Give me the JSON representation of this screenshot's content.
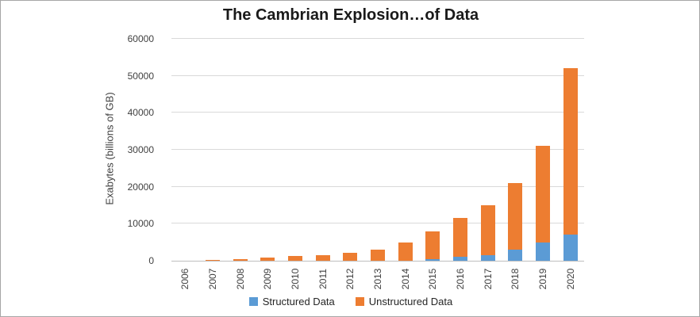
{
  "window": {
    "background_color": "#ffffff",
    "border_color": "#a6a6a6"
  },
  "chart_data": {
    "type": "bar",
    "stacked": true,
    "title": "The Cambrian Explosion…of Data",
    "xlabel": "",
    "ylabel": "Exabytes (billions of GB)",
    "categories": [
      "2006",
      "2007",
      "2008",
      "2009",
      "2010",
      "2011",
      "2012",
      "2013",
      "2014",
      "2015",
      "2016",
      "2017",
      "2018",
      "2019",
      "2020"
    ],
    "series": [
      {
        "name": "Structured Data",
        "color": "#5b9bd5",
        "values": [
          0,
          0,
          0,
          0,
          0,
          0,
          0,
          0,
          100,
          400,
          1000,
          1500,
          3000,
          5000,
          7000
        ]
      },
      {
        "name": "Unstructured Data",
        "color": "#ed7d31",
        "values": [
          100,
          200,
          400,
          800,
          1200,
          1500,
          2200,
          3100,
          4900,
          7600,
          10500,
          13500,
          18000,
          26000,
          45000
        ]
      }
    ],
    "totals": [
      100,
      200,
      400,
      800,
      1200,
      1500,
      2200,
      3100,
      5000,
      8000,
      11500,
      15000,
      21000,
      31000,
      52000
    ],
    "ylim": [
      0,
      60000
    ],
    "yticks": [
      0,
      10000,
      20000,
      30000,
      40000,
      50000,
      60000
    ],
    "grid": true,
    "legend_position": "bottom",
    "colors": {
      "gridline": "#d9d9d9",
      "axis_line": "#bfbfbf",
      "tick_text": "#404040",
      "title_text": "#1a1a1a"
    }
  }
}
